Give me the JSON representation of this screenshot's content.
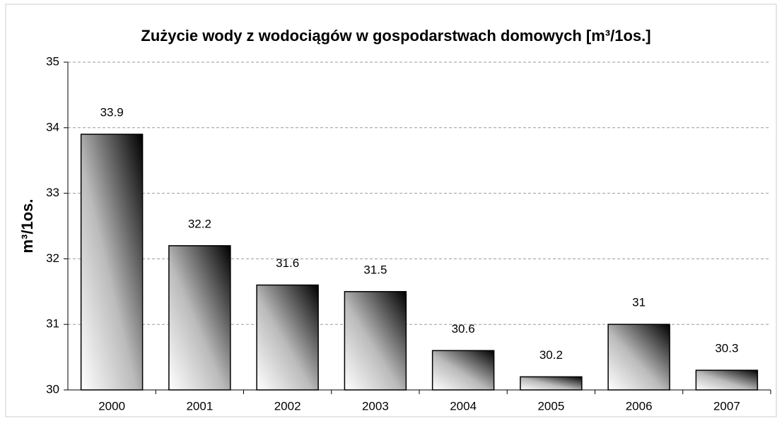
{
  "chart_data": {
    "type": "bar",
    "title": "Zużycie wody z wodociągów w gospodarstwach domowych [m³/1os.]",
    "y_label": "m³/1os.",
    "categories": [
      "2000",
      "2001",
      "2002",
      "2003",
      "2004",
      "2005",
      "2006",
      "2007"
    ],
    "values": [
      33.9,
      32.2,
      31.6,
      31.5,
      30.6,
      30.2,
      31,
      30.3
    ],
    "ylim": [
      30,
      35
    ],
    "yticks": [
      30,
      31,
      32,
      33,
      34,
      35
    ],
    "grid": true
  }
}
